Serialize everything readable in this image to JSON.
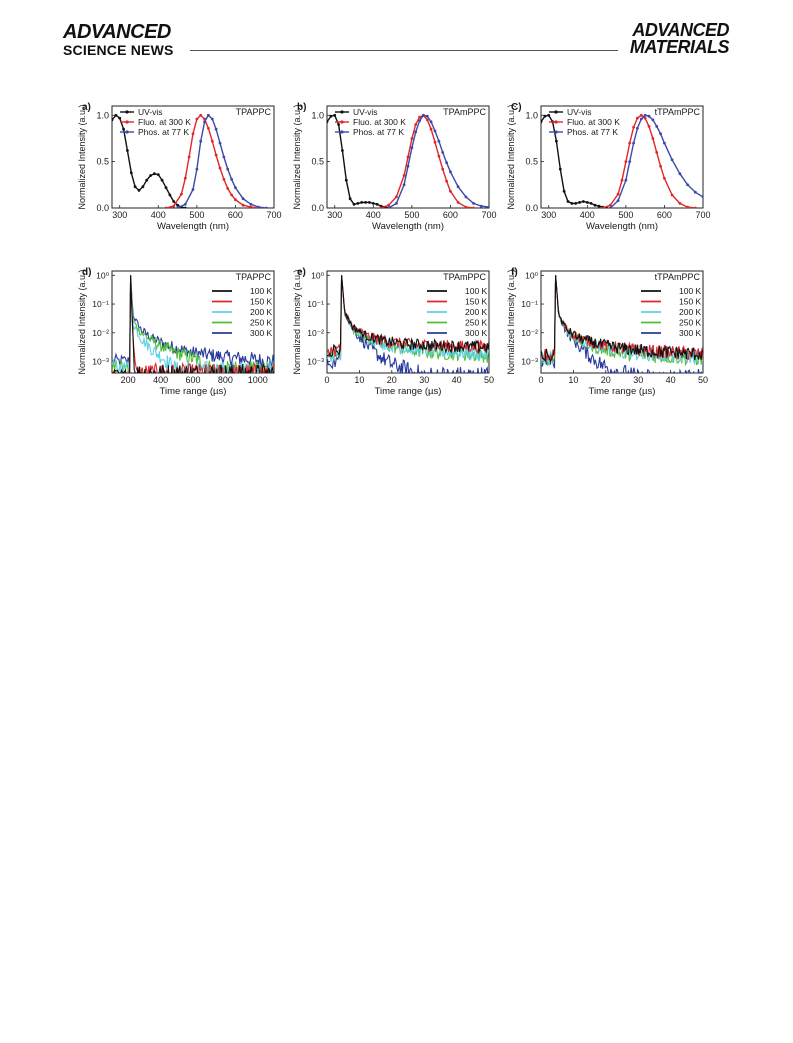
{
  "header": {
    "journal_left_line1": "ADVANCED",
    "journal_left_line2": "SCIENCE NEWS",
    "journal_right_line1": "ADVANCED",
    "journal_right_line2": "MATERIALS"
  },
  "colors": {
    "black": "#111111",
    "red": "#e0262b",
    "blue": "#3c49a8",
    "cyan": "#5fd0e6",
    "green": "#4fbf3a",
    "navy": "#2a3a9c"
  },
  "chart_data": [
    {
      "panel": "a)",
      "type": "line",
      "title": "TPAPPC",
      "xlabel": "Wavelength (nm)",
      "ylabel": "Normalized Intensity (a.u.)",
      "xlim": [
        280,
        700
      ],
      "ylim": [
        0,
        1.1
      ],
      "xticks": [
        "300",
        "400",
        "500",
        "600",
        "700"
      ],
      "xtick_values": [
        300,
        400,
        500,
        600,
        700
      ],
      "yticks": [
        "0.0",
        "0.5",
        "1.0"
      ],
      "ytick_values": [
        0,
        0.5,
        1.0
      ],
      "legend": "top-left",
      "series": [
        {
          "name": "UV-vis",
          "color": "#111111",
          "x": [
            280,
            290,
            300,
            310,
            320,
            330,
            340,
            350,
            360,
            370,
            380,
            390,
            400,
            410,
            420,
            430,
            440,
            450,
            460,
            470
          ],
          "y": [
            0.95,
            1.0,
            0.97,
            0.85,
            0.62,
            0.38,
            0.23,
            0.19,
            0.23,
            0.3,
            0.35,
            0.37,
            0.36,
            0.3,
            0.22,
            0.14,
            0.07,
            0.03,
            0.01,
            0.0
          ]
        },
        {
          "name": "Fluo. at 300 K",
          "color": "#e0262b",
          "x": [
            420,
            440,
            460,
            470,
            480,
            490,
            500,
            510,
            520,
            530,
            540,
            550,
            560,
            570,
            580,
            590,
            600,
            620,
            640,
            660
          ],
          "y": [
            0.0,
            0.02,
            0.15,
            0.32,
            0.55,
            0.8,
            0.96,
            1.0,
            0.96,
            0.86,
            0.72,
            0.57,
            0.43,
            0.31,
            0.21,
            0.14,
            0.09,
            0.03,
            0.01,
            0.0
          ]
        },
        {
          "name": "Phos. at 77 K",
          "color": "#3c49a8",
          "x": [
            450,
            470,
            490,
            500,
            510,
            520,
            530,
            540,
            550,
            560,
            570,
            580,
            590,
            600,
            620,
            640,
            660,
            680
          ],
          "y": [
            0.0,
            0.04,
            0.2,
            0.42,
            0.72,
            0.93,
            1.0,
            0.96,
            0.85,
            0.7,
            0.55,
            0.42,
            0.31,
            0.22,
            0.1,
            0.04,
            0.01,
            0.0
          ]
        }
      ]
    },
    {
      "panel": "b)",
      "type": "line",
      "title": "TPAmPPC",
      "xlabel": "Wavelength (nm)",
      "ylabel": "Normalized Intensity (a.u.)",
      "xlim": [
        280,
        700
      ],
      "ylim": [
        0,
        1.1
      ],
      "xticks": [
        "300",
        "400",
        "500",
        "600",
        "700"
      ],
      "xtick_values": [
        300,
        400,
        500,
        600,
        700
      ],
      "yticks": [
        "0.0",
        "0.5",
        "1.0"
      ],
      "ytick_values": [
        0,
        0.5,
        1.0
      ],
      "legend": "top-left",
      "series": [
        {
          "name": "UV-vis",
          "color": "#111111",
          "x": [
            280,
            290,
            300,
            310,
            320,
            330,
            340,
            350,
            360,
            370,
            380,
            390,
            400,
            410,
            420,
            430,
            440
          ],
          "y": [
            0.93,
            0.99,
            1.0,
            0.9,
            0.62,
            0.3,
            0.1,
            0.04,
            0.05,
            0.06,
            0.06,
            0.06,
            0.05,
            0.04,
            0.02,
            0.01,
            0.0
          ]
        },
        {
          "name": "Fluo. at 300 K",
          "color": "#e0262b",
          "x": [
            420,
            440,
            460,
            480,
            490,
            500,
            510,
            520,
            530,
            540,
            550,
            560,
            570,
            580,
            590,
            600,
            620,
            640,
            660
          ],
          "y": [
            0.0,
            0.03,
            0.12,
            0.35,
            0.55,
            0.75,
            0.9,
            0.98,
            1.0,
            0.95,
            0.85,
            0.71,
            0.56,
            0.42,
            0.29,
            0.18,
            0.06,
            0.01,
            0.0
          ]
        },
        {
          "name": "Phos. at 77 K",
          "color": "#3c49a8",
          "x": [
            440,
            460,
            480,
            490,
            500,
            510,
            520,
            530,
            540,
            550,
            560,
            570,
            580,
            590,
            600,
            620,
            640,
            660,
            680,
            700
          ],
          "y": [
            0.0,
            0.05,
            0.25,
            0.45,
            0.65,
            0.82,
            0.94,
            1.0,
            0.99,
            0.93,
            0.83,
            0.72,
            0.6,
            0.49,
            0.39,
            0.23,
            0.12,
            0.05,
            0.02,
            0.01
          ]
        }
      ]
    },
    {
      "panel": "C)",
      "type": "line",
      "title": "tTPAmPPC",
      "xlabel": "Wavelength (nm)",
      "ylabel": "Normalized Intensity (a.u.)",
      "xlim": [
        280,
        700
      ],
      "ylim": [
        0,
        1.1
      ],
      "xticks": [
        "300",
        "400",
        "500",
        "600",
        "700"
      ],
      "xtick_values": [
        300,
        400,
        500,
        600,
        700
      ],
      "yticks": [
        "0.0",
        "0.5",
        "1.0"
      ],
      "ytick_values": [
        0,
        0.5,
        1.0
      ],
      "legend": "top-left",
      "series": [
        {
          "name": "UV-vis",
          "color": "#111111",
          "x": [
            280,
            290,
            300,
            310,
            320,
            330,
            340,
            350,
            360,
            370,
            380,
            390,
            400,
            410,
            420,
            430,
            440,
            450
          ],
          "y": [
            0.93,
            0.99,
            1.0,
            0.93,
            0.72,
            0.42,
            0.18,
            0.07,
            0.05,
            0.05,
            0.06,
            0.07,
            0.06,
            0.05,
            0.03,
            0.02,
            0.01,
            0.0
          ]
        },
        {
          "name": "Fluo. at 300 K",
          "color": "#e0262b",
          "x": [
            440,
            460,
            480,
            490,
            500,
            510,
            520,
            530,
            540,
            550,
            560,
            570,
            580,
            590,
            600,
            620,
            640,
            660,
            680
          ],
          "y": [
            0.0,
            0.03,
            0.15,
            0.3,
            0.5,
            0.7,
            0.87,
            0.97,
            1.0,
            0.97,
            0.88,
            0.75,
            0.6,
            0.45,
            0.32,
            0.14,
            0.05,
            0.01,
            0.0
          ]
        },
        {
          "name": "Phos. at 77 K",
          "color": "#3c49a8",
          "x": [
            460,
            480,
            500,
            510,
            520,
            530,
            540,
            550,
            560,
            570,
            580,
            590,
            600,
            620,
            640,
            660,
            680,
            700
          ],
          "y": [
            0.0,
            0.08,
            0.3,
            0.5,
            0.7,
            0.86,
            0.96,
            1.0,
            0.99,
            0.95,
            0.88,
            0.8,
            0.7,
            0.52,
            0.37,
            0.25,
            0.17,
            0.12
          ]
        }
      ]
    },
    {
      "panel": "d)",
      "type": "line",
      "scale_y": "log",
      "title": "TPAPPC",
      "xlabel": "Time range (µs)",
      "ylabel": "Normalized Intensity (a.u.)",
      "xlim": [
        100,
        1100
      ],
      "ylim_exp": [
        -3.4,
        0.15
      ],
      "xticks": [
        "200",
        "400",
        "600",
        "800",
        "1000"
      ],
      "xtick_values": [
        200,
        400,
        600,
        800,
        1000
      ],
      "yticks": [
        "10⁰",
        "10⁻¹",
        "10⁻²",
        "10⁻³"
      ],
      "ytick_exps": [
        0,
        -1,
        -2,
        -3
      ],
      "legend": "top-right",
      "rise_x": 215,
      "series": [
        {
          "name": "100 K",
          "color": "#111111",
          "floor_exp": -3.5,
          "decay_x": [
            215,
            225,
            240
          ],
          "decay_exp": [
            0,
            -1.5,
            -3.4
          ]
        },
        {
          "name": "150 K",
          "color": "#e0262b",
          "floor_exp": -3.5,
          "decay_x": [
            215,
            225,
            245
          ],
          "decay_exp": [
            0,
            -1.6,
            -3.4
          ]
        },
        {
          "name": "200 K",
          "color": "#5fd0e6",
          "floor_exp": -3.2,
          "decay_x": [
            215,
            230,
            280,
            350,
            420,
            500
          ],
          "decay_exp": [
            0,
            -1.7,
            -2.2,
            -2.6,
            -2.9,
            -3.3
          ]
        },
        {
          "name": "250 K",
          "color": "#4fbf3a",
          "floor_exp": -3.2,
          "decay_x": [
            215,
            230,
            280,
            350,
            450,
            550,
            650,
            720
          ],
          "decay_exp": [
            0,
            -1.6,
            -2.0,
            -2.3,
            -2.6,
            -2.8,
            -3.0,
            -3.3
          ]
        },
        {
          "name": "300 K",
          "color": "#2a3a9c",
          "floor_exp": -3.0,
          "decay_x": [
            215,
            230,
            280,
            350,
            450,
            600,
            800,
            1000,
            1100
          ],
          "decay_exp": [
            0,
            -1.4,
            -1.9,
            -2.2,
            -2.45,
            -2.7,
            -2.85,
            -2.95,
            -3.0
          ]
        }
      ]
    },
    {
      "panel": "e)",
      "type": "line",
      "scale_y": "log",
      "title": "TPAmPPC",
      "xlabel": "Time range (µs)",
      "ylabel": "Normalized Intensity (a.u.)",
      "xlim": [
        0,
        50
      ],
      "ylim_exp": [
        -3.4,
        0.15
      ],
      "xticks": [
        "0",
        "10",
        "20",
        "30",
        "40",
        "50"
      ],
      "xtick_values": [
        0,
        10,
        20,
        30,
        40,
        50
      ],
      "yticks": [
        "10⁰",
        "10⁻¹",
        "10⁻²",
        "10⁻³"
      ],
      "ytick_exps": [
        0,
        -1,
        -2,
        -3
      ],
      "legend": "top-right",
      "rise_x": 4.5,
      "series": [
        {
          "name": "100 K",
          "color": "#111111",
          "floor_exp": -2.6,
          "decay_x": [
            4.5,
            5.5,
            8,
            12,
            18,
            25,
            35,
            50
          ],
          "decay_exp": [
            0,
            -1.3,
            -1.8,
            -2.1,
            -2.3,
            -2.4,
            -2.45,
            -2.5
          ]
        },
        {
          "name": "150 K",
          "color": "#e0262b",
          "floor_exp": -2.6,
          "decay_x": [
            4.5,
            5.5,
            8,
            12,
            18,
            25,
            35,
            50
          ],
          "decay_exp": [
            0,
            -1.3,
            -1.8,
            -2.1,
            -2.3,
            -2.4,
            -2.45,
            -2.5
          ]
        },
        {
          "name": "200 K",
          "color": "#5fd0e6",
          "floor_exp": -2.8,
          "decay_x": [
            4.5,
            5.5,
            8,
            12,
            18,
            25,
            35,
            50
          ],
          "decay_exp": [
            0,
            -1.3,
            -1.85,
            -2.15,
            -2.4,
            -2.55,
            -2.65,
            -2.75
          ]
        },
        {
          "name": "250 K",
          "color": "#4fbf3a",
          "floor_exp": -2.8,
          "decay_x": [
            4.5,
            5.5,
            8,
            12,
            18,
            25,
            35,
            50
          ],
          "decay_exp": [
            0,
            -1.3,
            -1.85,
            -2.2,
            -2.45,
            -2.6,
            -2.7,
            -2.8
          ]
        },
        {
          "name": "300 K",
          "color": "#2a3a9c",
          "floor_exp": -3.0,
          "decay_x": [
            4.5,
            5.5,
            8,
            12,
            16,
            20,
            25,
            30
          ],
          "decay_exp": [
            0,
            -1.3,
            -1.9,
            -2.4,
            -2.8,
            -3.1,
            -3.3,
            -3.5
          ]
        }
      ]
    },
    {
      "panel": "f)",
      "type": "line",
      "scale_y": "log",
      "title": "tTPAmPPC",
      "xlabel": "Time range (µs)",
      "ylabel": "Normalized Intensity (a.u.)",
      "xlim": [
        0,
        50
      ],
      "ylim_exp": [
        -3.4,
        0.15
      ],
      "xticks": [
        "0",
        "10",
        "20",
        "30",
        "40",
        "50"
      ],
      "xtick_values": [
        0,
        10,
        20,
        30,
        40,
        50
      ],
      "yticks": [
        "10⁰",
        "10⁻¹",
        "10⁻²",
        "10⁻³"
      ],
      "ytick_exps": [
        0,
        -1,
        -2,
        -3
      ],
      "legend": "top-right",
      "rise_x": 4.5,
      "series": [
        {
          "name": "100 K",
          "color": "#111111",
          "floor_exp": -2.8,
          "decay_x": [
            4.5,
            5.5,
            8,
            12,
            18,
            25,
            35,
            50
          ],
          "decay_exp": [
            0,
            -1.4,
            -1.9,
            -2.2,
            -2.4,
            -2.55,
            -2.65,
            -2.75
          ]
        },
        {
          "name": "150 K",
          "color": "#e0262b",
          "floor_exp": -2.8,
          "decay_x": [
            4.5,
            5.5,
            8,
            12,
            18,
            25,
            35,
            50
          ],
          "decay_exp": [
            0,
            -1.4,
            -1.9,
            -2.2,
            -2.4,
            -2.55,
            -2.65,
            -2.75
          ]
        },
        {
          "name": "200 K",
          "color": "#5fd0e6",
          "floor_exp": -2.9,
          "decay_x": [
            4.5,
            5.5,
            8,
            12,
            18,
            25,
            35,
            50
          ],
          "decay_exp": [
            0,
            -1.4,
            -1.95,
            -2.25,
            -2.5,
            -2.65,
            -2.75,
            -2.85
          ]
        },
        {
          "name": "250 K",
          "color": "#4fbf3a",
          "floor_exp": -2.9,
          "decay_x": [
            4.5,
            5.5,
            8,
            12,
            18,
            25,
            35,
            50
          ],
          "decay_exp": [
            0,
            -1.4,
            -1.95,
            -2.3,
            -2.55,
            -2.7,
            -2.8,
            -2.9
          ]
        },
        {
          "name": "300 K",
          "color": "#2a3a9c",
          "floor_exp": -3.0,
          "decay_x": [
            4.5,
            5.5,
            8,
            12,
            16,
            20,
            25,
            30
          ],
          "decay_exp": [
            0,
            -1.4,
            -2.0,
            -2.5,
            -2.9,
            -3.2,
            -3.4,
            -3.6
          ]
        }
      ]
    }
  ]
}
